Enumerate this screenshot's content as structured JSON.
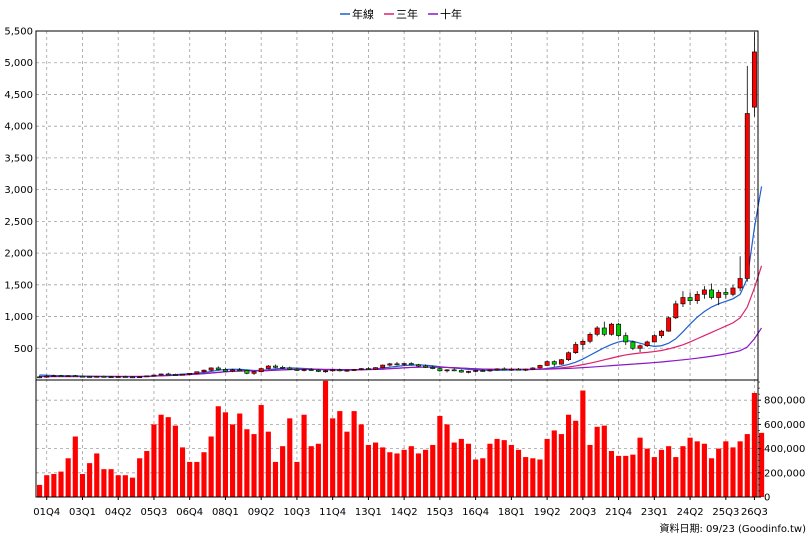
{
  "chart_data": {
    "type": "candlestick",
    "legend": {
      "placement": "top-center",
      "items": [
        {
          "label": "年線",
          "color": "#1f5fd1"
        },
        {
          "label": "三年",
          "color": "#e0206a"
        },
        {
          "label": "十年",
          "color": "#8a17c9"
        }
      ]
    },
    "price_axis": {
      "ylim": [
        0,
        5500
      ],
      "ticks": [
        500,
        1000,
        1500,
        2000,
        2500,
        3000,
        3500,
        4000,
        4500,
        5000,
        5500
      ],
      "tick_labels": [
        "500",
        "1,000",
        "1,500",
        "2,000",
        "2,500",
        "3,000",
        "3,500",
        "4,000",
        "4,500",
        "5,000",
        "5,500"
      ],
      "position": "left"
    },
    "volume_axis": {
      "ylim": [
        0,
        1000000
      ],
      "ticks": [
        0,
        200000,
        400000,
        600000,
        800000
      ],
      "tick_labels": [
        "0",
        "200,000",
        "400,000",
        "600,000",
        "800,000"
      ],
      "position": "right"
    },
    "x_ticks": [
      {
        "label": "01Q4",
        "index": 1
      },
      {
        "label": "03Q1",
        "index": 6
      },
      {
        "label": "04Q2",
        "index": 11
      },
      {
        "label": "05Q3",
        "index": 16
      },
      {
        "label": "06Q4",
        "index": 21
      },
      {
        "label": "08Q1",
        "index": 26
      },
      {
        "label": "09Q2",
        "index": 31
      },
      {
        "label": "10Q3",
        "index": 36
      },
      {
        "label": "11Q4",
        "index": 41
      },
      {
        "label": "13Q1",
        "index": 46
      },
      {
        "label": "14Q2",
        "index": 51
      },
      {
        "label": "15Q3",
        "index": 56
      },
      {
        "label": "16Q4",
        "index": 61
      },
      {
        "label": "18Q1",
        "index": 66
      },
      {
        "label": "19Q2",
        "index": 71
      },
      {
        "label": "20Q3",
        "index": 76
      },
      {
        "label": "21Q4",
        "index": 81
      },
      {
        "label": "23Q1",
        "index": 86
      },
      {
        "label": "24Q2",
        "index": 91
      },
      {
        "label": "25Q3",
        "index": 96
      },
      {
        "label": "26Q3",
        "index": 100
      }
    ],
    "grid": true,
    "colors": {
      "up_candle": "#ff0000",
      "down_candle": "#00cc00",
      "volume_bar": "#ff0000",
      "grid": "#a0a0a0"
    },
    "candles": [
      {
        "o": 50,
        "h": 70,
        "l": 30,
        "c": 45
      },
      {
        "o": 45,
        "h": 80,
        "l": 35,
        "c": 60
      },
      {
        "o": 60,
        "h": 85,
        "l": 50,
        "c": 70
      },
      {
        "o": 70,
        "h": 80,
        "l": 55,
        "c": 62
      },
      {
        "o": 62,
        "h": 75,
        "l": 50,
        "c": 68
      },
      {
        "o": 68,
        "h": 80,
        "l": 55,
        "c": 60
      },
      {
        "o": 60,
        "h": 70,
        "l": 45,
        "c": 55
      },
      {
        "o": 55,
        "h": 65,
        "l": 40,
        "c": 50
      },
      {
        "o": 50,
        "h": 65,
        "l": 42,
        "c": 58
      },
      {
        "o": 58,
        "h": 70,
        "l": 48,
        "c": 52
      },
      {
        "o": 52,
        "h": 62,
        "l": 42,
        "c": 48
      },
      {
        "o": 48,
        "h": 60,
        "l": 40,
        "c": 55
      },
      {
        "o": 55,
        "h": 68,
        "l": 45,
        "c": 50
      },
      {
        "o": 50,
        "h": 60,
        "l": 40,
        "c": 46
      },
      {
        "o": 46,
        "h": 58,
        "l": 38,
        "c": 52
      },
      {
        "o": 52,
        "h": 70,
        "l": 45,
        "c": 65
      },
      {
        "o": 65,
        "h": 85,
        "l": 55,
        "c": 78
      },
      {
        "o": 78,
        "h": 100,
        "l": 70,
        "c": 95
      },
      {
        "o": 95,
        "h": 115,
        "l": 80,
        "c": 88
      },
      {
        "o": 88,
        "h": 100,
        "l": 72,
        "c": 80
      },
      {
        "o": 80,
        "h": 95,
        "l": 70,
        "c": 90
      },
      {
        "o": 90,
        "h": 110,
        "l": 82,
        "c": 105
      },
      {
        "o": 105,
        "h": 135,
        "l": 95,
        "c": 130
      },
      {
        "o": 130,
        "h": 165,
        "l": 120,
        "c": 155
      },
      {
        "o": 155,
        "h": 200,
        "l": 140,
        "c": 190
      },
      {
        "o": 190,
        "h": 215,
        "l": 150,
        "c": 165
      },
      {
        "o": 165,
        "h": 185,
        "l": 130,
        "c": 140
      },
      {
        "o": 140,
        "h": 175,
        "l": 125,
        "c": 160
      },
      {
        "o": 160,
        "h": 190,
        "l": 140,
        "c": 150
      },
      {
        "o": 150,
        "h": 160,
        "l": 90,
        "c": 105
      },
      {
        "o": 105,
        "h": 140,
        "l": 80,
        "c": 130
      },
      {
        "o": 130,
        "h": 190,
        "l": 120,
        "c": 180
      },
      {
        "o": 180,
        "h": 235,
        "l": 170,
        "c": 220
      },
      {
        "o": 220,
        "h": 245,
        "l": 185,
        "c": 200
      },
      {
        "o": 200,
        "h": 225,
        "l": 175,
        "c": 190
      },
      {
        "o": 190,
        "h": 210,
        "l": 160,
        "c": 170
      },
      {
        "o": 170,
        "h": 190,
        "l": 140,
        "c": 150
      },
      {
        "o": 150,
        "h": 175,
        "l": 135,
        "c": 165
      },
      {
        "o": 165,
        "h": 185,
        "l": 145,
        "c": 155
      },
      {
        "o": 155,
        "h": 170,
        "l": 125,
        "c": 135
      },
      {
        "o": 135,
        "h": 160,
        "l": 115,
        "c": 145
      },
      {
        "o": 145,
        "h": 170,
        "l": 130,
        "c": 160
      },
      {
        "o": 160,
        "h": 180,
        "l": 135,
        "c": 145
      },
      {
        "o": 145,
        "h": 165,
        "l": 130,
        "c": 155
      },
      {
        "o": 155,
        "h": 175,
        "l": 140,
        "c": 165
      },
      {
        "o": 165,
        "h": 190,
        "l": 150,
        "c": 180
      },
      {
        "o": 180,
        "h": 200,
        "l": 160,
        "c": 170
      },
      {
        "o": 170,
        "h": 200,
        "l": 160,
        "c": 195
      },
      {
        "o": 195,
        "h": 245,
        "l": 185,
        "c": 235
      },
      {
        "o": 235,
        "h": 270,
        "l": 215,
        "c": 255
      },
      {
        "o": 255,
        "h": 285,
        "l": 230,
        "c": 245
      },
      {
        "o": 245,
        "h": 270,
        "l": 220,
        "c": 260
      },
      {
        "o": 260,
        "h": 280,
        "l": 230,
        "c": 240
      },
      {
        "o": 240,
        "h": 255,
        "l": 205,
        "c": 220
      },
      {
        "o": 220,
        "h": 245,
        "l": 190,
        "c": 200
      },
      {
        "o": 200,
        "h": 225,
        "l": 170,
        "c": 180
      },
      {
        "o": 180,
        "h": 200,
        "l": 130,
        "c": 145
      },
      {
        "o": 145,
        "h": 170,
        "l": 120,
        "c": 160
      },
      {
        "o": 160,
        "h": 185,
        "l": 140,
        "c": 150
      },
      {
        "o": 150,
        "h": 165,
        "l": 115,
        "c": 125
      },
      {
        "o": 125,
        "h": 145,
        "l": 105,
        "c": 135
      },
      {
        "o": 135,
        "h": 160,
        "l": 120,
        "c": 150
      },
      {
        "o": 150,
        "h": 170,
        "l": 130,
        "c": 145
      },
      {
        "o": 145,
        "h": 165,
        "l": 130,
        "c": 158
      },
      {
        "o": 158,
        "h": 185,
        "l": 145,
        "c": 175
      },
      {
        "o": 175,
        "h": 200,
        "l": 155,
        "c": 165
      },
      {
        "o": 165,
        "h": 185,
        "l": 145,
        "c": 170
      },
      {
        "o": 170,
        "h": 190,
        "l": 150,
        "c": 160
      },
      {
        "o": 160,
        "h": 180,
        "l": 140,
        "c": 170
      },
      {
        "o": 170,
        "h": 200,
        "l": 160,
        "c": 190
      },
      {
        "o": 190,
        "h": 240,
        "l": 180,
        "c": 230
      },
      {
        "o": 230,
        "h": 310,
        "l": 220,
        "c": 290
      },
      {
        "o": 290,
        "h": 310,
        "l": 210,
        "c": 250
      },
      {
        "o": 250,
        "h": 330,
        "l": 240,
        "c": 320
      },
      {
        "o": 320,
        "h": 450,
        "l": 300,
        "c": 430
      },
      {
        "o": 430,
        "h": 600,
        "l": 410,
        "c": 560
      },
      {
        "o": 560,
        "h": 640,
        "l": 480,
        "c": 610
      },
      {
        "o": 610,
        "h": 750,
        "l": 580,
        "c": 720
      },
      {
        "o": 720,
        "h": 850,
        "l": 690,
        "c": 820
      },
      {
        "o": 820,
        "h": 920,
        "l": 690,
        "c": 720
      },
      {
        "o": 720,
        "h": 900,
        "l": 700,
        "c": 880
      },
      {
        "o": 880,
        "h": 900,
        "l": 680,
        "c": 700
      },
      {
        "o": 700,
        "h": 750,
        "l": 550,
        "c": 600
      },
      {
        "o": 600,
        "h": 620,
        "l": 470,
        "c": 500
      },
      {
        "o": 500,
        "h": 560,
        "l": 440,
        "c": 540
      },
      {
        "o": 540,
        "h": 620,
        "l": 520,
        "c": 600
      },
      {
        "o": 600,
        "h": 720,
        "l": 590,
        "c": 700
      },
      {
        "o": 700,
        "h": 790,
        "l": 660,
        "c": 770
      },
      {
        "o": 770,
        "h": 1000,
        "l": 760,
        "c": 980
      },
      {
        "o": 980,
        "h": 1250,
        "l": 960,
        "c": 1200
      },
      {
        "o": 1200,
        "h": 1400,
        "l": 1150,
        "c": 1300
      },
      {
        "o": 1300,
        "h": 1380,
        "l": 1180,
        "c": 1250
      },
      {
        "o": 1250,
        "h": 1400,
        "l": 1200,
        "c": 1350
      },
      {
        "o": 1350,
        "h": 1480,
        "l": 1280,
        "c": 1420
      },
      {
        "o": 1420,
        "h": 1520,
        "l": 1270,
        "c": 1300
      },
      {
        "o": 1300,
        "h": 1420,
        "l": 1180,
        "c": 1380
      },
      {
        "o": 1380,
        "h": 1450,
        "l": 1280,
        "c": 1350
      },
      {
        "o": 1350,
        "h": 1500,
        "l": 1320,
        "c": 1450
      },
      {
        "o": 1450,
        "h": 1950,
        "l": 1400,
        "c": 1600
      },
      {
        "o": 1600,
        "h": 4950,
        "l": 1550,
        "c": 4200
      },
      {
        "o": 4300,
        "h": 5480,
        "l": 4150,
        "c": 5170
      }
    ],
    "volume": [
      100000,
      180000,
      190000,
      210000,
      320000,
      500000,
      190000,
      280000,
      360000,
      230000,
      230000,
      180000,
      180000,
      160000,
      320000,
      380000,
      600000,
      680000,
      660000,
      590000,
      410000,
      290000,
      290000,
      370000,
      500000,
      750000,
      700000,
      600000,
      690000,
      560000,
      520000,
      760000,
      540000,
      290000,
      420000,
      650000,
      290000,
      680000,
      420000,
      440000,
      960000,
      650000,
      710000,
      540000,
      710000,
      600000,
      430000,
      450000,
      410000,
      370000,
      360000,
      390000,
      420000,
      360000,
      390000,
      430000,
      670000,
      600000,
      450000,
      480000,
      440000,
      310000,
      320000,
      440000,
      480000,
      470000,
      430000,
      390000,
      330000,
      320000,
      310000,
      480000,
      550000,
      520000,
      680000,
      630000,
      880000,
      430000,
      580000,
      590000,
      380000,
      340000,
      340000,
      350000,
      490000,
      400000,
      330000,
      390000,
      420000,
      330000,
      420000,
      490000,
      460000,
      440000,
      320000,
      400000,
      460000,
      410000,
      460000,
      520000,
      860000,
      530000
    ],
    "moving_averages": {
      "年線": [
        80,
        75,
        70,
        68,
        66,
        65,
        62,
        60,
        58,
        56,
        55,
        54,
        53,
        52,
        52,
        55,
        60,
        68,
        78,
        86,
        92,
        98,
        105,
        118,
        135,
        155,
        165,
        170,
        168,
        160,
        150,
        152,
        162,
        175,
        185,
        190,
        188,
        182,
        175,
        168,
        162,
        158,
        156,
        155,
        157,
        162,
        168,
        176,
        188,
        202,
        215,
        228,
        235,
        238,
        232,
        222,
        210,
        198,
        188,
        178,
        168,
        160,
        155,
        153,
        154,
        156,
        158,
        160,
        162,
        165,
        170,
        182,
        200,
        220,
        245,
        280,
        330,
        390,
        450,
        510,
        560,
        600,
        620,
        610,
        580,
        550,
        530,
        540,
        580,
        650,
        760,
        880,
        990,
        1080,
        1150,
        1200,
        1240,
        1280,
        1350,
        1600,
        2400,
        3050
      ],
      "三年": [
        55,
        55,
        55,
        55,
        55,
        55,
        55,
        55,
        55,
        55,
        55,
        55,
        55,
        55,
        55,
        58,
        62,
        66,
        70,
        75,
        80,
        86,
        92,
        100,
        110,
        120,
        130,
        138,
        142,
        144,
        145,
        146,
        150,
        155,
        160,
        165,
        168,
        170,
        170,
        168,
        166,
        165,
        164,
        163,
        162,
        163,
        165,
        168,
        172,
        178,
        185,
        192,
        198,
        202,
        204,
        204,
        202,
        198,
        194,
        188,
        182,
        176,
        172,
        170,
        168,
        168,
        168,
        168,
        168,
        168,
        170,
        175,
        182,
        192,
        205,
        222,
        242,
        265,
        290,
        318,
        345,
        372,
        395,
        412,
        425,
        435,
        448,
        465,
        490,
        520,
        555,
        600,
        650,
        700,
        750,
        800,
        850,
        900,
        980,
        1150,
        1450,
        1800
      ],
      "十年": [
        55,
        55,
        55,
        55,
        55,
        55,
        55,
        55,
        55,
        55,
        55,
        55,
        55,
        55,
        55,
        58,
        62,
        66,
        70,
        75,
        80,
        86,
        92,
        100,
        110,
        120,
        130,
        138,
        142,
        144,
        145,
        146,
        150,
        155,
        160,
        165,
        168,
        170,
        170,
        168,
        166,
        165,
        164,
        163,
        162,
        163,
        165,
        168,
        172,
        178,
        185,
        192,
        198,
        202,
        204,
        204,
        202,
        198,
        194,
        188,
        182,
        176,
        172,
        170,
        168,
        168,
        168,
        168,
        168,
        168,
        170,
        172,
        175,
        178,
        182,
        188,
        195,
        202,
        210,
        218,
        226,
        234,
        242,
        250,
        258,
        266,
        275,
        284,
        295,
        306,
        318,
        330,
        344,
        358,
        374,
        392,
        412,
        435,
        462,
        520,
        650,
        820
      ]
    },
    "footer_note": "資料日期: 09/23  (Goodinfo.tw)"
  }
}
